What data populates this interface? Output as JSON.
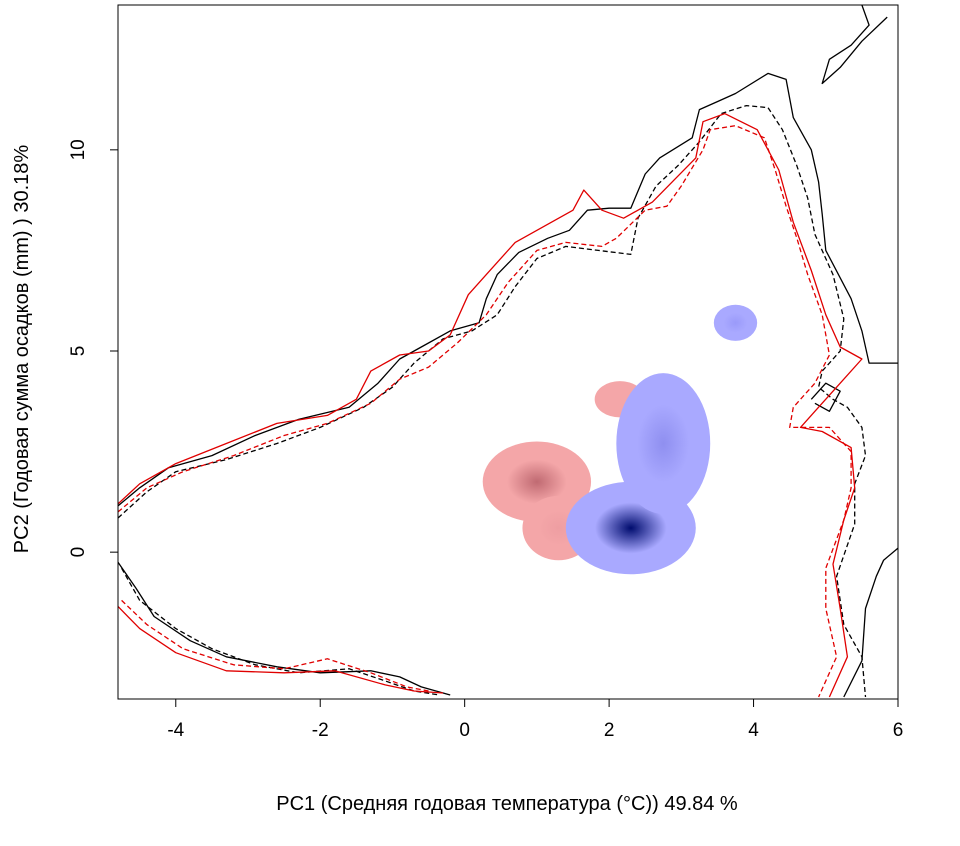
{
  "chart_data": {
    "type": "heatmap",
    "title": "",
    "xlabel": "PC1 (Средняя годовая температура (°C)) 49.84 %",
    "ylabel": "PC2 (Годовая сумма осадков  (mm) ) 30.18%",
    "xlim": [
      -4.8,
      6.0
    ],
    "ylim": [
      -3.65,
      13.6
    ],
    "xticks": [
      -4,
      -2,
      0,
      2,
      4,
      6
    ],
    "yticks": [
      0,
      5,
      10
    ],
    "xtick_labels": [
      "-4",
      "-2",
      "0",
      "2",
      "4",
      "6"
    ],
    "ytick_labels": [
      "0",
      "5",
      "10"
    ],
    "grid": false,
    "legend": "none",
    "colors": {
      "contour_black": "#000000",
      "contour_red": "#e00000",
      "density_red": "#c06a72",
      "density_blue": "#000c6e",
      "overlap_green": "#90ee90",
      "axes": "#000000"
    },
    "density_blobs": [
      {
        "color": "red",
        "center": [
          1.0,
          1.75
        ],
        "rx": 0.75,
        "ry": 1.0,
        "fill_low": "#f4a6a8",
        "fill_high": "#c06a72"
      },
      {
        "color": "red",
        "center": [
          1.3,
          0.6
        ],
        "rx": 0.5,
        "ry": 0.8,
        "fill_low": "#f4a6a8",
        "fill_high": "#ee9ea2"
      },
      {
        "color": "red",
        "center": [
          2.15,
          3.8
        ],
        "rx": 0.35,
        "ry": 0.45,
        "fill_low": "#f4a6a8",
        "fill_high": "#f4a6a8"
      },
      {
        "color": "blue",
        "center": [
          2.3,
          0.6
        ],
        "rx": 0.9,
        "ry": 1.15,
        "fill_low": "#a9a9ff",
        "fill_high": "#000c6e"
      },
      {
        "color": "blue",
        "center": [
          2.75,
          2.7
        ],
        "rx": 0.65,
        "ry": 1.75,
        "fill_low": "#a9a9ff",
        "fill_high": "#8f8ff0"
      },
      {
        "color": "blue",
        "center": [
          3.75,
          5.7
        ],
        "rx": 0.3,
        "ry": 0.45,
        "fill_low": "#a9a9ff",
        "fill_high": "#9a9afa"
      }
    ],
    "contours": [
      {
        "name": "",
        "color": "black",
        "style": "solid",
        "points": [
          [
            -4.8,
            1.15
          ],
          [
            -4.5,
            1.6
          ],
          [
            -4.1,
            2.1
          ],
          [
            -3.5,
            2.4
          ],
          [
            -2.9,
            2.9
          ],
          [
            -2.3,
            3.3
          ],
          [
            -1.6,
            3.6
          ],
          [
            -1.2,
            4.2
          ],
          [
            -0.9,
            4.8
          ],
          [
            -0.6,
            5.1
          ],
          [
            -0.2,
            5.5
          ],
          [
            0.2,
            5.7
          ],
          [
            0.3,
            6.3
          ],
          [
            0.45,
            6.9
          ],
          [
            0.75,
            7.45
          ],
          [
            1.15,
            7.8
          ],
          [
            1.45,
            8.0
          ],
          [
            1.7,
            8.5
          ],
          [
            2.0,
            8.55
          ],
          [
            2.3,
            8.55
          ],
          [
            2.5,
            9.4
          ],
          [
            2.7,
            9.8
          ],
          [
            3.15,
            10.3
          ],
          [
            3.25,
            11.0
          ],
          [
            3.5,
            11.2
          ],
          [
            3.75,
            11.4
          ],
          [
            4.2,
            11.9
          ],
          [
            4.45,
            11.75
          ],
          [
            4.55,
            10.8
          ],
          [
            4.8,
            10.0
          ],
          [
            4.9,
            9.2
          ],
          [
            4.95,
            8.4
          ],
          [
            5.0,
            7.5
          ],
          [
            5.35,
            6.3
          ],
          [
            5.5,
            5.5
          ],
          [
            5.6,
            4.7
          ],
          [
            6.0,
            4.7
          ]
        ]
      },
      {
        "name": "",
        "color": "black",
        "style": "solid",
        "points": [
          [
            5.5,
            13.6
          ],
          [
            5.6,
            13.1
          ],
          [
            5.35,
            12.6
          ],
          [
            5.05,
            12.25
          ],
          [
            4.95,
            11.65
          ],
          [
            5.2,
            12.05
          ],
          [
            5.5,
            12.7
          ],
          [
            5.85,
            13.3
          ]
        ]
      },
      {
        "name": "",
        "color": "black",
        "style": "solid",
        "points": [
          [
            -4.8,
            -0.25
          ],
          [
            -4.55,
            -0.9
          ],
          [
            -4.3,
            -1.6
          ],
          [
            -3.8,
            -2.2
          ],
          [
            -3.3,
            -2.6
          ],
          [
            -2.6,
            -2.85
          ],
          [
            -2.0,
            -3.0
          ],
          [
            -1.3,
            -2.95
          ],
          [
            -0.9,
            -3.1
          ],
          [
            -0.6,
            -3.35
          ],
          [
            -0.2,
            -3.55
          ]
        ]
      },
      {
        "name": "",
        "color": "black",
        "style": "solid",
        "points": [
          [
            5.25,
            -3.6
          ],
          [
            5.5,
            -2.7
          ],
          [
            5.55,
            -1.4
          ],
          [
            5.7,
            -0.6
          ],
          [
            5.8,
            -0.2
          ],
          [
            6.0,
            0.1
          ]
        ]
      },
      {
        "name": "",
        "color": "black",
        "style": "solid",
        "points": [
          [
            4.8,
            3.8
          ],
          [
            5.0,
            4.2
          ],
          [
            5.2,
            4.0
          ],
          [
            5.05,
            3.5
          ],
          [
            4.85,
            3.7
          ]
        ]
      },
      {
        "name": "",
        "color": "black",
        "style": "dashed",
        "points": [
          [
            -4.8,
            0.85
          ],
          [
            -4.4,
            1.5
          ],
          [
            -4.0,
            2.0
          ],
          [
            -3.3,
            2.3
          ],
          [
            -2.6,
            2.7
          ],
          [
            -2.0,
            3.1
          ],
          [
            -1.4,
            3.6
          ],
          [
            -1.0,
            4.1
          ],
          [
            -0.7,
            4.7
          ],
          [
            -0.3,
            5.3
          ],
          [
            0.1,
            5.5
          ],
          [
            0.45,
            5.9
          ],
          [
            0.7,
            6.6
          ],
          [
            1.0,
            7.3
          ],
          [
            1.4,
            7.6
          ],
          [
            1.85,
            7.5
          ],
          [
            2.3,
            7.4
          ],
          [
            2.4,
            8.3
          ],
          [
            2.65,
            9.1
          ],
          [
            2.95,
            9.6
          ],
          [
            3.25,
            10.2
          ],
          [
            3.55,
            10.9
          ],
          [
            3.9,
            11.1
          ],
          [
            4.2,
            11.05
          ],
          [
            4.4,
            10.5
          ],
          [
            4.6,
            9.6
          ],
          [
            4.75,
            8.8
          ],
          [
            4.85,
            7.9
          ],
          [
            5.1,
            6.9
          ],
          [
            5.25,
            5.8
          ],
          [
            5.2,
            5.0
          ],
          [
            4.95,
            4.5
          ],
          [
            4.9,
            4.1
          ],
          [
            5.1,
            3.8
          ],
          [
            5.3,
            3.6
          ],
          [
            5.5,
            3.1
          ],
          [
            5.55,
            2.4
          ],
          [
            5.4,
            1.7
          ],
          [
            5.4,
            0.7
          ],
          [
            5.15,
            -0.6
          ],
          [
            5.25,
            -1.8
          ],
          [
            5.5,
            -2.6
          ],
          [
            5.55,
            -3.6
          ]
        ]
      },
      {
        "name": "",
        "color": "black",
        "style": "dashed",
        "points": [
          [
            -4.75,
            -0.4
          ],
          [
            -4.5,
            -1.2
          ],
          [
            -4.0,
            -1.9
          ],
          [
            -3.5,
            -2.4
          ],
          [
            -2.9,
            -2.8
          ],
          [
            -2.3,
            -3.0
          ],
          [
            -1.6,
            -2.9
          ],
          [
            -1.1,
            -3.2
          ],
          [
            -0.7,
            -3.45
          ],
          [
            -0.35,
            -3.55
          ]
        ]
      },
      {
        "name": "",
        "color": "red",
        "style": "solid",
        "points": [
          [
            -4.8,
            1.2
          ],
          [
            -4.5,
            1.7
          ],
          [
            -4.0,
            2.2
          ],
          [
            -3.3,
            2.7
          ],
          [
            -2.6,
            3.2
          ],
          [
            -1.9,
            3.4
          ],
          [
            -1.5,
            3.8
          ],
          [
            -1.3,
            4.5
          ],
          [
            -0.9,
            4.9
          ],
          [
            -0.5,
            5.0
          ],
          [
            -0.2,
            5.4
          ],
          [
            0.05,
            6.4
          ],
          [
            0.3,
            6.9
          ],
          [
            0.7,
            7.7
          ],
          [
            1.1,
            8.1
          ],
          [
            1.5,
            8.5
          ],
          [
            1.65,
            9.0
          ],
          [
            1.9,
            8.5
          ],
          [
            2.2,
            8.3
          ],
          [
            2.6,
            8.7
          ],
          [
            3.2,
            9.8
          ],
          [
            3.3,
            10.7
          ],
          [
            3.6,
            10.9
          ],
          [
            4.05,
            10.5
          ],
          [
            4.35,
            9.5
          ],
          [
            4.55,
            8.2
          ],
          [
            4.8,
            7.0
          ],
          [
            5.0,
            5.9
          ],
          [
            5.2,
            5.1
          ],
          [
            5.5,
            4.8
          ],
          [
            5.15,
            4.1
          ],
          [
            4.85,
            3.5
          ],
          [
            4.65,
            3.1
          ],
          [
            4.95,
            3.0
          ],
          [
            5.35,
            2.6
          ],
          [
            5.4,
            1.6
          ],
          [
            5.25,
            0.8
          ],
          [
            5.1,
            -0.3
          ],
          [
            5.2,
            -1.4
          ],
          [
            5.3,
            -2.6
          ],
          [
            5.05,
            -3.6
          ]
        ]
      },
      {
        "name": "",
        "color": "red",
        "style": "solid",
        "points": [
          [
            -4.8,
            -1.35
          ],
          [
            -4.5,
            -1.9
          ],
          [
            -4.0,
            -2.5
          ],
          [
            -3.3,
            -2.95
          ],
          [
            -2.5,
            -3.0
          ],
          [
            -1.8,
            -2.95
          ],
          [
            -1.1,
            -3.3
          ],
          [
            -0.7,
            -3.45
          ],
          [
            -0.3,
            -3.5
          ]
        ]
      },
      {
        "name": "",
        "color": "red",
        "style": "dashed",
        "points": [
          [
            -4.8,
            1.0
          ],
          [
            -4.4,
            1.6
          ],
          [
            -3.9,
            2.0
          ],
          [
            -3.2,
            2.4
          ],
          [
            -2.5,
            2.9
          ],
          [
            -1.9,
            3.2
          ],
          [
            -1.3,
            3.7
          ],
          [
            -0.9,
            4.3
          ],
          [
            -0.5,
            4.6
          ],
          [
            -0.1,
            5.2
          ],
          [
            0.3,
            5.9
          ],
          [
            0.6,
            6.7
          ],
          [
            1.0,
            7.5
          ],
          [
            1.4,
            7.7
          ],
          [
            1.9,
            7.6
          ],
          [
            2.1,
            7.8
          ],
          [
            2.5,
            8.5
          ],
          [
            2.8,
            8.6
          ],
          [
            3.0,
            9.1
          ],
          [
            3.3,
            10.0
          ],
          [
            3.4,
            10.5
          ],
          [
            3.75,
            10.6
          ],
          [
            4.15,
            10.3
          ],
          [
            4.3,
            9.5
          ],
          [
            4.45,
            8.6
          ],
          [
            4.6,
            7.8
          ],
          [
            4.75,
            6.9
          ],
          [
            4.95,
            5.9
          ],
          [
            5.05,
            4.9
          ],
          [
            4.85,
            4.2
          ],
          [
            4.55,
            3.6
          ],
          [
            4.5,
            3.1
          ],
          [
            5.05,
            3.1
          ],
          [
            5.35,
            2.5
          ],
          [
            5.35,
            1.6
          ],
          [
            5.25,
            0.8
          ],
          [
            5.0,
            -0.4
          ],
          [
            5.0,
            -1.4
          ],
          [
            5.15,
            -2.6
          ],
          [
            4.9,
            -3.6
          ]
        ]
      },
      {
        "name": "",
        "color": "red",
        "style": "dashed",
        "points": [
          [
            -4.75,
            -1.2
          ],
          [
            -4.4,
            -1.8
          ],
          [
            -3.9,
            -2.4
          ],
          [
            -3.2,
            -2.8
          ],
          [
            -2.5,
            -2.9
          ],
          [
            -1.9,
            -2.65
          ],
          [
            -1.3,
            -3.0
          ],
          [
            -0.8,
            -3.35
          ],
          [
            -0.5,
            -3.45
          ]
        ]
      }
    ]
  }
}
